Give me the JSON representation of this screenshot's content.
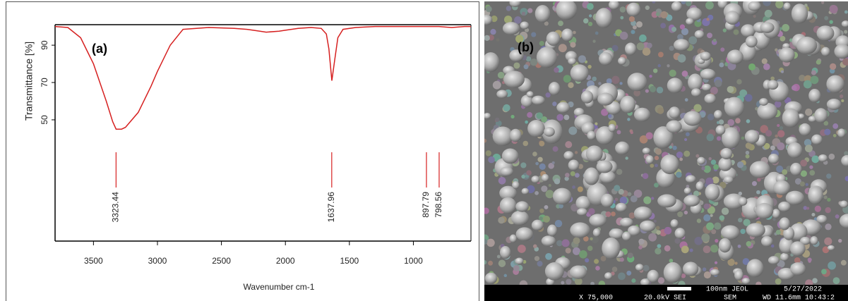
{
  "chart_data": {
    "type": "line",
    "panel_label": "(a)",
    "x_label": "Wavenumber cm-1",
    "y_label": "Transmittance [%]",
    "x": [
      3800,
      3700,
      3600,
      3500,
      3400,
      3350,
      3323,
      3280,
      3250,
      3150,
      3050,
      3000,
      2900,
      2800,
      2600,
      2400,
      2300,
      2200,
      2150,
      2050,
      2000,
      1900,
      1800,
      1720,
      1680,
      1660,
      1637,
      1615,
      1590,
      1550,
      1450,
      1300,
      1000,
      900,
      800,
      700,
      600,
      550
    ],
    "values": [
      100,
      99.5,
      94,
      80,
      60,
      49,
      45,
      45,
      46,
      54,
      68,
      76,
      90,
      98.5,
      99.5,
      99,
      98.5,
      97.5,
      97,
      97.5,
      98,
      99,
      99.5,
      99,
      96,
      88,
      71,
      82,
      94,
      98.5,
      99.5,
      100,
      100,
      100,
      100,
      99.5,
      100,
      100
    ],
    "color": "#d62020",
    "xlim": [
      3800,
      550
    ],
    "ylim": [
      -15,
      101
    ],
    "xticks": [
      3500,
      3000,
      2500,
      2000,
      1500,
      1000
    ],
    "yticks": [
      50,
      70,
      90
    ],
    "peaks": [
      3323.44,
      1637.96,
      897.79,
      798.56
    ]
  },
  "image_panel": {
    "panel_label": "(b)",
    "footer": [
      "X 75,000",
      "20.0kV SEI",
      "SEM",
      "100nm JEOL",
      "WD 11.6mm 10:43:2",
      "5/27/2022"
    ]
  }
}
